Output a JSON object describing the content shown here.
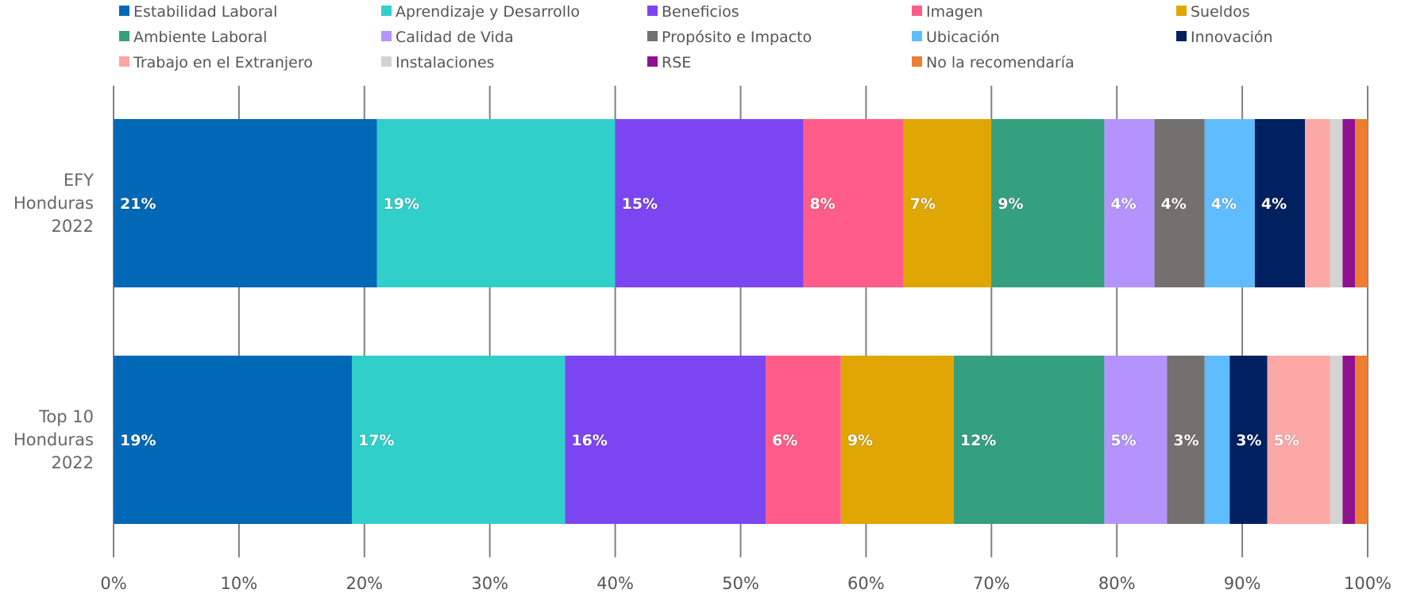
{
  "chart_data": {
    "type": "bar",
    "orientation": "horizontal",
    "stacked": "percent",
    "categories": [
      "EFY Honduras 2022",
      "Top 10 Honduras 2022"
    ],
    "category_label_lines": [
      [
        "EFY",
        "Honduras",
        "2022"
      ],
      [
        "Top 10",
        "Honduras",
        "2022"
      ]
    ],
    "series": [
      {
        "name": "Estabilidad Laboral",
        "color": "#0068b7",
        "values": [
          21,
          19
        ],
        "labels": [
          "21%",
          "19%"
        ]
      },
      {
        "name": "Aprendizaje y Desarrollo",
        "color": "#31cfc9",
        "values": [
          19,
          17
        ],
        "labels": [
          "19%",
          "17%"
        ]
      },
      {
        "name": "Beneficios",
        "color": "#7c45f2",
        "values": [
          15,
          16
        ],
        "labels": [
          "15%",
          "16%"
        ]
      },
      {
        "name": "Imagen",
        "color": "#ff5c8a",
        "values": [
          8,
          6
        ],
        "labels": [
          "8%",
          "6%"
        ]
      },
      {
        "name": "Sueldos",
        "color": "#e0a604",
        "values": [
          7,
          9
        ],
        "labels": [
          "7%",
          "9%"
        ]
      },
      {
        "name": "Ambiente Laboral",
        "color": "#34a07d",
        "values": [
          9,
          12
        ],
        "labels": [
          "9%",
          "12%"
        ]
      },
      {
        "name": "Calidad de Vida",
        "color": "#b593fc",
        "values": [
          4,
          5
        ],
        "labels": [
          "4%",
          "5%"
        ]
      },
      {
        "name": "Propósito e Impacto",
        "color": "#737070",
        "values": [
          4,
          3
        ],
        "labels": [
          "4%",
          "3%"
        ]
      },
      {
        "name": "Ubicación",
        "color": "#5fbcff",
        "values": [
          4,
          2
        ],
        "labels": [
          "4%",
          ""
        ]
      },
      {
        "name": "Innovación",
        "color": "#002060",
        "values": [
          4,
          3
        ],
        "labels": [
          "4%",
          "3%"
        ]
      },
      {
        "name": "Trabajo en el Extranjero",
        "color": "#fca8a6",
        "values": [
          2,
          5
        ],
        "labels": [
          "",
          "5%"
        ]
      },
      {
        "name": "Instalaciones",
        "color": "#d3d3d3",
        "values": [
          1,
          1
        ],
        "labels": [
          "",
          ""
        ]
      },
      {
        "name": "RSE",
        "color": "#8e1290",
        "values": [
          1,
          1
        ],
        "labels": [
          "",
          ""
        ]
      },
      {
        "name": "No la recomendaría",
        "color": "#ed7d31",
        "values": [
          1,
          1
        ],
        "labels": [
          "",
          ""
        ]
      }
    ],
    "xlim": [
      0,
      100
    ],
    "xticks": [
      "0%",
      "10%",
      "20%",
      "30%",
      "40%",
      "50%",
      "60%",
      "70%",
      "80%",
      "90%",
      "100%"
    ],
    "grid": true,
    "legend_position": "top"
  }
}
